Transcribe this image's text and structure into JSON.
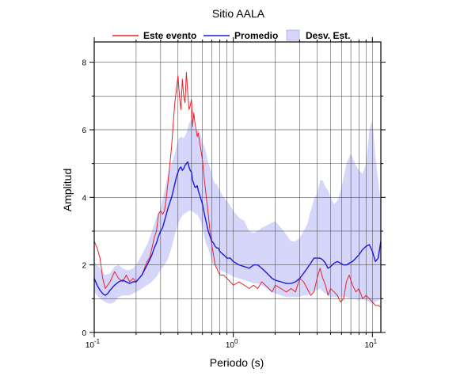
{
  "chart_data": {
    "type": "line",
    "title": "Sitio AALA",
    "xlabel": "Periodo (s)",
    "ylabel": "Amplitud",
    "xscale": "log",
    "xlim": [
      0.1,
      11.5
    ],
    "ylim": [
      0,
      8.6
    ],
    "grid": true,
    "legend_position": "top",
    "xticks": [
      {
        "value": 0.1,
        "base": "10",
        "exp": "-1"
      },
      {
        "value": 1,
        "base": "10",
        "exp": "0"
      },
      {
        "value": 10,
        "base": "10",
        "exp": "1"
      }
    ],
    "yticks": [
      0,
      2,
      4,
      6,
      8
    ],
    "colors": {
      "event": "#e8232a",
      "mean": "#1a1adc",
      "band_fill": "#d6d6fb",
      "grid": "#555555"
    },
    "legend": [
      {
        "label": "Este evento",
        "kind": "line",
        "color": "#e8232a"
      },
      {
        "label": "Promedio",
        "kind": "line",
        "color": "#1a1adc"
      },
      {
        "label": "Desv. Est.",
        "kind": "box",
        "color": "#d6d6fb"
      }
    ],
    "series": [
      {
        "name": "Este evento",
        "x": [
          0.1,
          0.105,
          0.11,
          0.115,
          0.12,
          0.125,
          0.13,
          0.14,
          0.15,
          0.16,
          0.17,
          0.18,
          0.19,
          0.2,
          0.21,
          0.22,
          0.23,
          0.24,
          0.25,
          0.26,
          0.27,
          0.28,
          0.29,
          0.3,
          0.31,
          0.32,
          0.33,
          0.34,
          0.35,
          0.36,
          0.37,
          0.38,
          0.39,
          0.4,
          0.41,
          0.42,
          0.43,
          0.44,
          0.45,
          0.46,
          0.47,
          0.48,
          0.49,
          0.5,
          0.51,
          0.52,
          0.53,
          0.54,
          0.55,
          0.56,
          0.58,
          0.6,
          0.62,
          0.64,
          0.66,
          0.68,
          0.7,
          0.72,
          0.74,
          0.76,
          0.78,
          0.8,
          0.85,
          0.9,
          0.95,
          1.0,
          1.1,
          1.2,
          1.3,
          1.4,
          1.5,
          1.6,
          1.7,
          1.8,
          1.9,
          2.0,
          2.2,
          2.4,
          2.6,
          2.8,
          3.0,
          3.2,
          3.4,
          3.6,
          3.8,
          4.0,
          4.2,
          4.4,
          4.6,
          4.8,
          5.0,
          5.3,
          5.6,
          5.9,
          6.2,
          6.5,
          6.8,
          7.2,
          7.6,
          8.0,
          8.5,
          9.0,
          9.5,
          10.0,
          10.5,
          11.0,
          11.5
        ],
        "y": [
          2.7,
          2.5,
          2.2,
          1.6,
          1.3,
          1.4,
          1.5,
          1.8,
          1.6,
          1.5,
          1.7,
          1.5,
          1.6,
          1.5,
          1.6,
          1.7,
          1.9,
          2.1,
          2.2,
          2.5,
          2.8,
          3.0,
          3.5,
          3.6,
          3.5,
          3.6,
          4.0,
          4.5,
          5.0,
          5.5,
          6.2,
          6.8,
          7.2,
          7.6,
          7.0,
          6.6,
          7.5,
          7.0,
          6.8,
          7.7,
          7.1,
          6.6,
          6.7,
          6.9,
          6.1,
          6.5,
          6.2,
          6.0,
          5.8,
          5.9,
          5.5,
          5.1,
          4.5,
          4.0,
          3.5,
          3.0,
          2.6,
          2.3,
          2.0,
          1.9,
          1.8,
          1.7,
          1.7,
          1.6,
          1.5,
          1.4,
          1.5,
          1.4,
          1.3,
          1.4,
          1.3,
          1.5,
          1.4,
          1.3,
          1.2,
          1.4,
          1.3,
          1.2,
          1.3,
          1.2,
          1.6,
          1.5,
          1.3,
          1.1,
          1.2,
          1.6,
          1.9,
          1.6,
          1.4,
          1.1,
          1.3,
          1.2,
          1.1,
          0.9,
          1.0,
          1.5,
          1.7,
          1.4,
          1.2,
          1.3,
          1.0,
          1.1,
          1.0,
          0.9,
          0.8,
          0.8,
          0.75
        ]
      },
      {
        "name": "Promedio",
        "x": [
          0.1,
          0.105,
          0.11,
          0.115,
          0.12,
          0.125,
          0.13,
          0.14,
          0.15,
          0.16,
          0.17,
          0.18,
          0.19,
          0.2,
          0.21,
          0.22,
          0.23,
          0.24,
          0.25,
          0.26,
          0.27,
          0.28,
          0.29,
          0.3,
          0.31,
          0.32,
          0.33,
          0.34,
          0.35,
          0.36,
          0.37,
          0.38,
          0.39,
          0.4,
          0.41,
          0.42,
          0.43,
          0.44,
          0.45,
          0.46,
          0.47,
          0.48,
          0.49,
          0.5,
          0.51,
          0.52,
          0.53,
          0.54,
          0.55,
          0.56,
          0.58,
          0.6,
          0.62,
          0.64,
          0.66,
          0.68,
          0.7,
          0.72,
          0.74,
          0.76,
          0.78,
          0.8,
          0.85,
          0.9,
          0.95,
          1.0,
          1.1,
          1.2,
          1.3,
          1.4,
          1.5,
          1.6,
          1.7,
          1.8,
          1.9,
          2.0,
          2.2,
          2.4,
          2.6,
          2.8,
          3.0,
          3.2,
          3.4,
          3.6,
          3.8,
          4.0,
          4.2,
          4.4,
          4.6,
          4.8,
          5.0,
          5.3,
          5.6,
          5.9,
          6.2,
          6.5,
          6.8,
          7.2,
          7.6,
          8.0,
          8.5,
          9.0,
          9.5,
          10.0,
          10.5,
          11.0,
          11.5
        ],
        "y": [
          1.6,
          1.4,
          1.25,
          1.15,
          1.1,
          1.15,
          1.25,
          1.4,
          1.5,
          1.55,
          1.5,
          1.45,
          1.5,
          1.5,
          1.6,
          1.7,
          1.85,
          2.0,
          2.15,
          2.3,
          2.5,
          2.65,
          2.85,
          3.0,
          3.1,
          3.3,
          3.5,
          3.7,
          3.85,
          4.0,
          4.2,
          4.4,
          4.6,
          4.75,
          4.85,
          4.9,
          4.8,
          4.85,
          4.95,
          5.0,
          5.05,
          4.9,
          4.8,
          4.75,
          4.5,
          4.4,
          4.3,
          4.3,
          4.35,
          4.2,
          4.0,
          3.8,
          3.5,
          3.25,
          3.0,
          2.85,
          2.7,
          2.65,
          2.55,
          2.5,
          2.5,
          2.4,
          2.3,
          2.2,
          2.2,
          2.1,
          2.0,
          1.95,
          1.9,
          2.0,
          2.0,
          1.9,
          1.8,
          1.7,
          1.6,
          1.55,
          1.5,
          1.45,
          1.45,
          1.5,
          1.6,
          1.75,
          1.9,
          2.05,
          2.2,
          2.2,
          2.2,
          2.15,
          2.05,
          1.9,
          1.95,
          2.05,
          2.1,
          2.05,
          2.0,
          2.0,
          2.05,
          2.1,
          2.2,
          2.3,
          2.45,
          2.55,
          2.6,
          2.4,
          2.1,
          2.2,
          2.7
        ]
      }
    ],
    "std_band": {
      "name": "Desv. Est.",
      "x": [
        0.1,
        0.11,
        0.12,
        0.13,
        0.14,
        0.15,
        0.16,
        0.17,
        0.18,
        0.19,
        0.2,
        0.22,
        0.24,
        0.26,
        0.28,
        0.3,
        0.32,
        0.34,
        0.36,
        0.38,
        0.4,
        0.42,
        0.44,
        0.46,
        0.48,
        0.5,
        0.52,
        0.54,
        0.56,
        0.58,
        0.6,
        0.62,
        0.64,
        0.66,
        0.68,
        0.7,
        0.72,
        0.74,
        0.76,
        0.8,
        0.85,
        0.9,
        0.95,
        1.0,
        1.1,
        1.2,
        1.3,
        1.4,
        1.5,
        1.6,
        1.8,
        2.0,
        2.2,
        2.4,
        2.6,
        2.8,
        3.0,
        3.2,
        3.4,
        3.6,
        3.8,
        4.0,
        4.2,
        4.4,
        4.6,
        4.8,
        5.0,
        5.3,
        5.6,
        6.0,
        6.5,
        7.0,
        7.5,
        8.0,
        8.5,
        9.0,
        9.5,
        10.0,
        10.5,
        11.0,
        11.5
      ],
      "upper": [
        2.1,
        1.9,
        1.7,
        1.75,
        1.95,
        2.0,
        1.9,
        1.85,
        1.85,
        1.9,
        2.0,
        2.3,
        2.6,
        3.0,
        3.4,
        3.7,
        4.2,
        4.7,
        5.0,
        5.3,
        5.7,
        5.8,
        5.75,
        5.9,
        6.2,
        6.3,
        6.1,
        5.95,
        6.0,
        5.9,
        5.6,
        5.5,
        5.3,
        5.0,
        4.9,
        4.7,
        4.5,
        4.4,
        4.4,
        4.2,
        4.0,
        3.9,
        3.75,
        3.6,
        3.4,
        3.3,
        3.0,
        2.95,
        3.0,
        3.1,
        3.2,
        3.3,
        3.1,
        2.9,
        2.7,
        2.7,
        2.8,
        3.0,
        3.2,
        3.6,
        3.95,
        4.1,
        4.5,
        4.5,
        4.3,
        4.2,
        4.0,
        3.8,
        3.9,
        4.3,
        5.0,
        5.3,
        5.0,
        4.8,
        4.7,
        5.0,
        6.0,
        6.3,
        5.2,
        4.5,
        3.8
      ],
      "lower": [
        1.2,
        1.0,
        0.9,
        0.85,
        0.9,
        1.05,
        1.1,
        1.1,
        1.1,
        1.15,
        1.2,
        1.3,
        1.4,
        1.5,
        1.65,
        1.85,
        2.0,
        2.2,
        2.5,
        2.9,
        3.2,
        3.4,
        3.5,
        3.55,
        3.6,
        3.6,
        3.55,
        3.5,
        3.45,
        3.3,
        3.1,
        2.8,
        2.6,
        2.5,
        2.3,
        2.1,
        2.0,
        1.95,
        1.9,
        1.85,
        1.8,
        1.75,
        1.7,
        1.65,
        1.6,
        1.55,
        1.5,
        1.45,
        1.45,
        1.4,
        1.25,
        1.15,
        1.1,
        1.05,
        1.05,
        1.05,
        1.05,
        1.1,
        1.1,
        1.15,
        1.2,
        1.25,
        1.3,
        1.2,
        1.15,
        1.1,
        1.05,
        1.05,
        1.05,
        1.05,
        1.05,
        1.0,
        1.0,
        0.95,
        1.0,
        0.95,
        0.9,
        0.85,
        0.9,
        0.95,
        1.0
      ]
    }
  }
}
